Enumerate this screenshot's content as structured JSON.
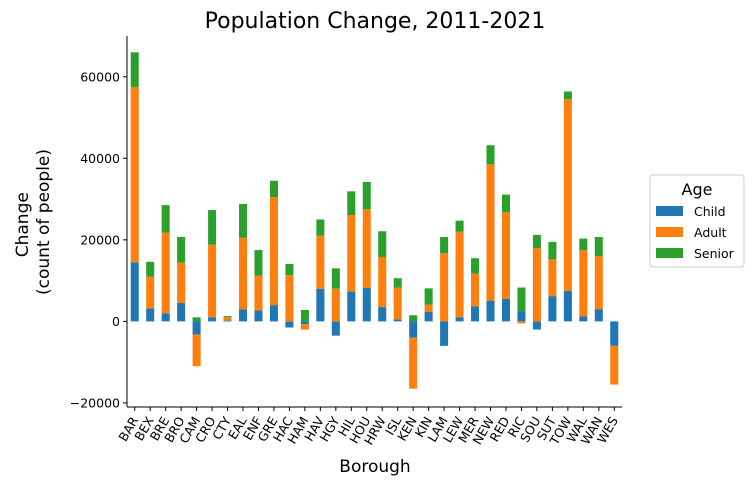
{
  "chart_data": {
    "type": "bar",
    "stacked": true,
    "title": "Population Change, 2011-2021",
    "xlabel": "Borough",
    "ylabel_lines": [
      "Change",
      "(count of people)"
    ],
    "ylim": [
      -21000,
      70000
    ],
    "yticks": [
      -20000,
      0,
      20000,
      40000,
      60000
    ],
    "ytick_labels": [
      "−20000",
      "0",
      "20000",
      "40000",
      "60000"
    ],
    "grid": false,
    "legend": {
      "title": "Age",
      "placement": "right"
    },
    "categories": [
      "BAR",
      "BEX",
      "BRE",
      "BRO",
      "CAM",
      "CRO",
      "CTY",
      "EAL",
      "ENF",
      "GRE",
      "HAC",
      "HAM",
      "HAV",
      "HGY",
      "HIL",
      "HOU",
      "HRW",
      "ISL",
      "KEN",
      "KIN",
      "LAM",
      "LEW",
      "MER",
      "NEW",
      "RED",
      "RIC",
      "SOU",
      "SUT",
      "TOW",
      "WAL",
      "WAN",
      "WES"
    ],
    "series": [
      {
        "name": "Child",
        "color": "#1f77b4",
        "values": [
          14500,
          3200,
          2000,
          4500,
          -3200,
          1000,
          200,
          3000,
          2700,
          4000,
          -1500,
          -700,
          8000,
          -3500,
          7300,
          8200,
          3500,
          500,
          -4000,
          2300,
          -6000,
          1000,
          3700,
          5000,
          5500,
          2500,
          -2000,
          6200,
          7500,
          1200,
          3000,
          -6000
        ]
      },
      {
        "name": "Adult",
        "color": "#ff7f0e",
        "values": [
          43000,
          7800,
          19800,
          9900,
          -7800,
          17800,
          800,
          17500,
          8500,
          26500,
          11300,
          -1300,
          13000,
          8000,
          18800,
          19300,
          12300,
          7800,
          -12500,
          1800,
          16700,
          21000,
          8000,
          33500,
          21300,
          -500,
          18000,
          9000,
          47000,
          16300,
          13000,
          -9500
        ]
      },
      {
        "name": "Senior",
        "color": "#2ca02c",
        "values": [
          8500,
          3600,
          6700,
          6300,
          1000,
          8500,
          300,
          8300,
          6300,
          4000,
          2800,
          2800,
          4000,
          5000,
          5800,
          6700,
          6300,
          2300,
          1500,
          4000,
          4000,
          2700,
          3800,
          4700,
          4300,
          5800,
          3200,
          4300,
          1900,
          2800,
          4700,
          0
        ]
      }
    ]
  }
}
